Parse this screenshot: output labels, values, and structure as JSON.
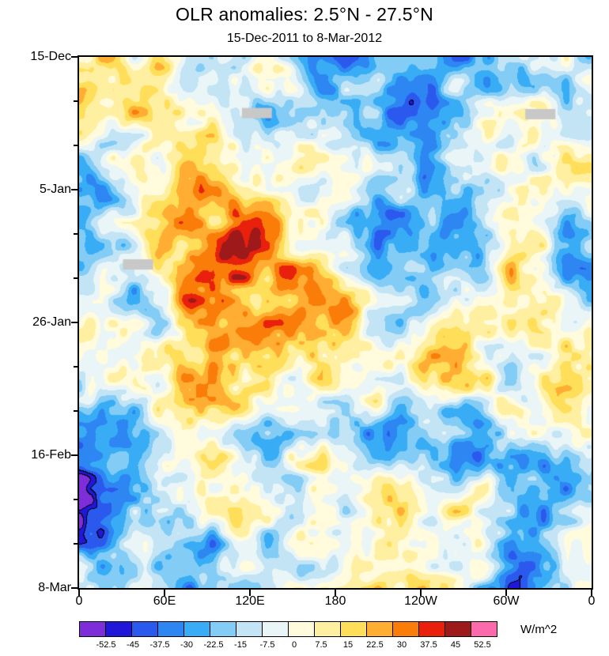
{
  "chart_data": {
    "type": "heatmap",
    "title": "OLR anomalies: 2.5°N - 27.5°N",
    "subtitle": "15-Dec-2011 to 8-Mar-2012",
    "x_axis": {
      "tick_labels": [
        "0",
        "60E",
        "120E",
        "180",
        "120W",
        "60W",
        "0"
      ],
      "range_deg": [
        0,
        360
      ]
    },
    "y_axis": {
      "tick_labels": [
        "15-Dec",
        "5-Jan",
        "26-Jan",
        "16-Feb",
        "8-Mar"
      ],
      "direction": "time-increasing-downward",
      "minor_ticks_between_majors": 2
    },
    "colorbar": {
      "levels": [
        -52.5,
        -45,
        -37.5,
        -30,
        -22.5,
        -15,
        -7.5,
        0,
        7.5,
        15,
        22.5,
        30,
        37.5,
        45,
        52.5
      ],
      "labels": [
        "-52.5",
        "-45",
        "-37.5",
        "-30",
        "-22.5",
        "-15",
        "-7.5",
        "0",
        "7.5",
        "15",
        "22.5",
        "30",
        "37.5",
        "45",
        "52.5"
      ],
      "colors": [
        "#7d2ed9",
        "#2017d8",
        "#2b59ee",
        "#2e86f2",
        "#38adf5",
        "#82ccf5",
        "#c2e4f5",
        "#eaf5f7",
        "#fffbdc",
        "#ffefa0",
        "#ffde59",
        "#ffae33",
        "#fa7d09",
        "#e8200c",
        "#9e1a1a",
        "#fc6aae"
      ],
      "units": "W/m^2"
    },
    "missing_data_patches": [
      {
        "x": 0.347,
        "y": 0.105
      },
      {
        "x": 0.9,
        "y": 0.107
      },
      {
        "x": 0.115,
        "y": 0.39
      }
    ]
  }
}
